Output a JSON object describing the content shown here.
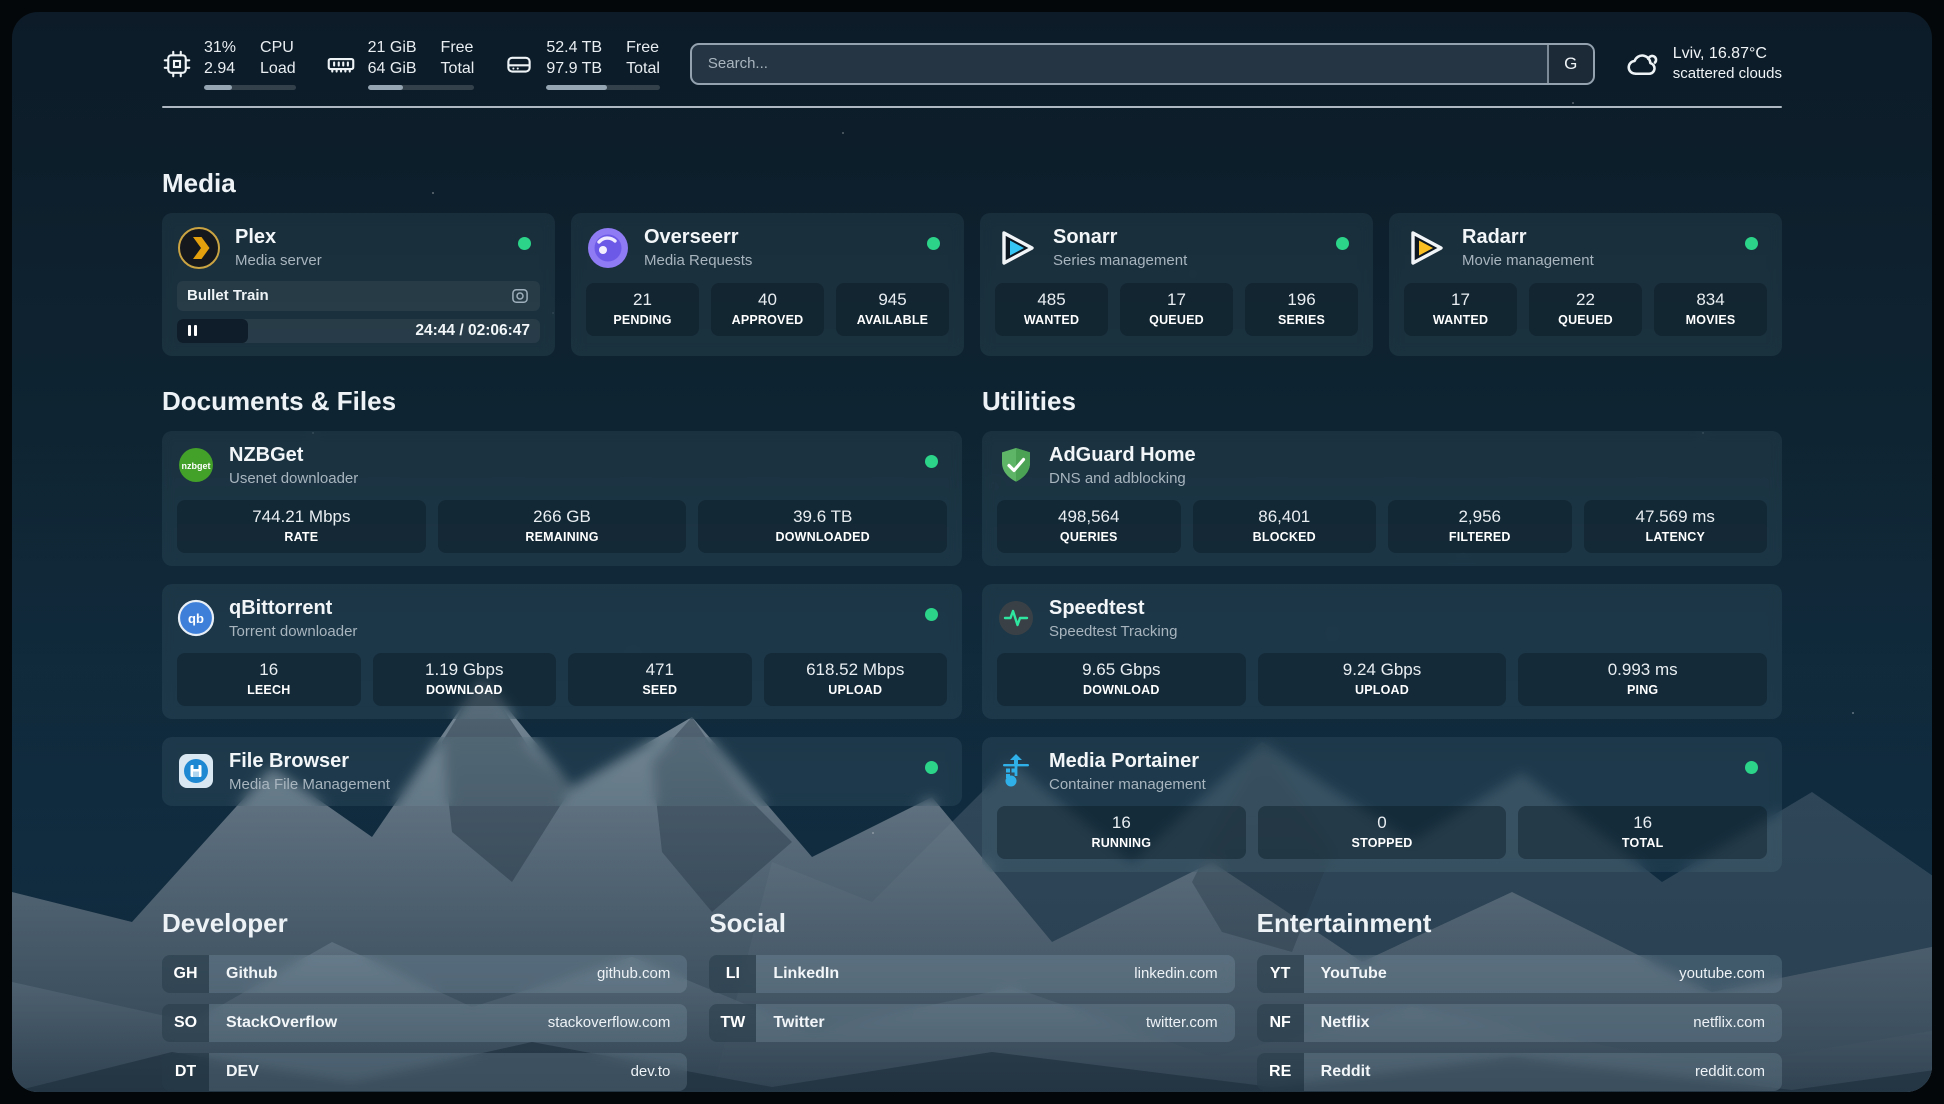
{
  "topbar": {
    "cpu": {
      "icon": "cpu-chip-icon",
      "values": [
        "31%",
        "2.94"
      ],
      "labels": [
        "CPU",
        "Load"
      ],
      "progress_pct": 31
    },
    "memory": {
      "icon": "ram-icon",
      "values": [
        "21 GiB",
        "64 GiB"
      ],
      "labels": [
        "Free",
        "Total"
      ],
      "progress_pct": 33
    },
    "disk": {
      "icon": "hard-drive-icon",
      "values": [
        "52.4 TB",
        "97.9 TB"
      ],
      "labels": [
        "Free",
        "Total"
      ],
      "progress_pct": 53
    },
    "search": {
      "placeholder": "Search...",
      "provider_badge": "G"
    },
    "weather": {
      "icon": "cloud-icon",
      "location_temp": "Lviv, 16.87°C",
      "condition": "scattered clouds"
    }
  },
  "sections": {
    "media": "Media",
    "documents": "Documents & Files",
    "utilities": "Utilities",
    "developer": "Developer",
    "social": "Social",
    "entertainment": "Entertainment"
  },
  "services": {
    "plex": {
      "name": "Plex",
      "description": "Media server",
      "online": true,
      "now_playing": {
        "title": "Bullet Train",
        "time_display": "24:44 / 02:06:47",
        "progress_pct": 19.5
      }
    },
    "overseerr": {
      "name": "Overseerr",
      "description": "Media Requests",
      "online": true,
      "stats": [
        {
          "value": "21",
          "label": "PENDING"
        },
        {
          "value": "40",
          "label": "APPROVED"
        },
        {
          "value": "945",
          "label": "AVAILABLE"
        }
      ]
    },
    "sonarr": {
      "name": "Sonarr",
      "description": "Series management",
      "online": true,
      "stats": [
        {
          "value": "485",
          "label": "WANTED"
        },
        {
          "value": "17",
          "label": "QUEUED"
        },
        {
          "value": "196",
          "label": "SERIES"
        }
      ]
    },
    "radarr": {
      "name": "Radarr",
      "description": "Movie management",
      "online": true,
      "stats": [
        {
          "value": "17",
          "label": "WANTED"
        },
        {
          "value": "22",
          "label": "QUEUED"
        },
        {
          "value": "834",
          "label": "MOVIES"
        }
      ]
    },
    "nzbget": {
      "name": "NZBGet",
      "description": "Usenet downloader",
      "online": true,
      "stats": [
        {
          "value": "744.21 Mbps",
          "label": "RATE"
        },
        {
          "value": "266 GB",
          "label": "REMAINING"
        },
        {
          "value": "39.6 TB",
          "label": "DOWNLOADED"
        }
      ]
    },
    "qbittorrent": {
      "name": "qBittorrent",
      "description": "Torrent downloader",
      "online": true,
      "stats": [
        {
          "value": "16",
          "label": "LEECH"
        },
        {
          "value": "1.19 Gbps",
          "label": "DOWNLOAD"
        },
        {
          "value": "471",
          "label": "SEED"
        },
        {
          "value": "618.52 Mbps",
          "label": "UPLOAD"
        }
      ]
    },
    "filebrowser": {
      "name": "File Browser",
      "description": "Media File Management",
      "online": true
    },
    "adguard": {
      "name": "AdGuard Home",
      "description": "DNS and adblocking",
      "stats": [
        {
          "value": "498,564",
          "label": "QUERIES"
        },
        {
          "value": "86,401",
          "label": "BLOCKED"
        },
        {
          "value": "2,956",
          "label": "FILTERED"
        },
        {
          "value": "47.569 ms",
          "label": "LATENCY"
        }
      ]
    },
    "speedtest": {
      "name": "Speedtest",
      "description": "Speedtest Tracking",
      "stats": [
        {
          "value": "9.65 Gbps",
          "label": "DOWNLOAD"
        },
        {
          "value": "9.24 Gbps",
          "label": "UPLOAD"
        },
        {
          "value": "0.993 ms",
          "label": "PING"
        }
      ]
    },
    "portainer": {
      "name": "Media Portainer",
      "description": "Container management",
      "online": true,
      "stats": [
        {
          "value": "16",
          "label": "RUNNING"
        },
        {
          "value": "0",
          "label": "STOPPED"
        },
        {
          "value": "16",
          "label": "TOTAL"
        }
      ]
    }
  },
  "bookmarks": {
    "developer": [
      {
        "abbr": "GH",
        "name": "Github",
        "url": "github.com"
      },
      {
        "abbr": "SO",
        "name": "StackOverflow",
        "url": "stackoverflow.com"
      },
      {
        "abbr": "DT",
        "name": "DEV",
        "url": "dev.to"
      }
    ],
    "social": [
      {
        "abbr": "LI",
        "name": "LinkedIn",
        "url": "linkedin.com"
      },
      {
        "abbr": "TW",
        "name": "Twitter",
        "url": "twitter.com"
      }
    ],
    "entertainment": [
      {
        "abbr": "YT",
        "name": "YouTube",
        "url": "youtube.com"
      },
      {
        "abbr": "NF",
        "name": "Netflix",
        "url": "netflix.com"
      },
      {
        "abbr": "RE",
        "name": "Reddit",
        "url": "reddit.com"
      }
    ]
  },
  "colors": {
    "status_online": "#2bd489",
    "plex_accent": "#e5a00d",
    "sonarr_accent": "#35c5f4",
    "radarr_accent": "#fbbf24",
    "sky": "#0f2533"
  }
}
